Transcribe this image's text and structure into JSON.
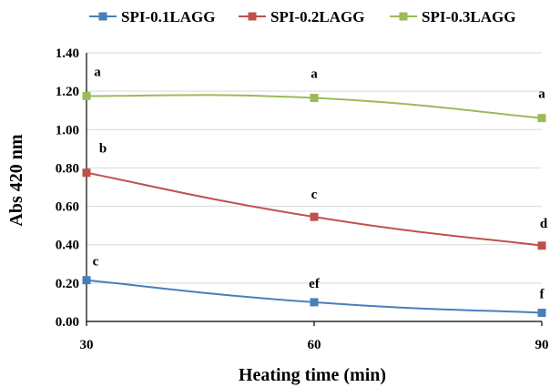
{
  "chart_data": {
    "type": "line",
    "title": "",
    "xlabel": "Heating time (min)",
    "ylabel": "Abs 420 nm",
    "x": [
      30,
      60,
      90
    ],
    "x_tick_labels": [
      "30",
      "60",
      "90"
    ],
    "xlim": [
      30,
      90
    ],
    "ylim": [
      0,
      1.4
    ],
    "y_ticks": [
      0,
      0.2,
      0.4,
      0.6,
      0.8,
      1.0,
      1.2,
      1.4
    ],
    "y_tick_labels": [
      "0.00",
      "0.20",
      "0.40",
      "0.60",
      "0.80",
      "1.00",
      "1.20",
      "1.40"
    ],
    "grid": "horizontal",
    "legend_position": "top",
    "series": [
      {
        "name": "SPI-0.1LAGG",
        "color": "#4a7ebb",
        "marker": "square",
        "values": [
          0.215,
          0.1,
          0.045
        ],
        "labels": [
          "c",
          "ef",
          "f"
        ]
      },
      {
        "name": "SPI-0.2LAGG",
        "color": "#c0504d",
        "marker": "square",
        "values": [
          0.775,
          0.545,
          0.395
        ],
        "labels": [
          "b",
          "c",
          "d"
        ]
      },
      {
        "name": "SPI-0.3LAGG",
        "color": "#9bbb59",
        "marker": "square",
        "values": [
          1.175,
          1.165,
          1.06
        ],
        "labels": [
          "a",
          "a",
          "a"
        ]
      }
    ]
  }
}
